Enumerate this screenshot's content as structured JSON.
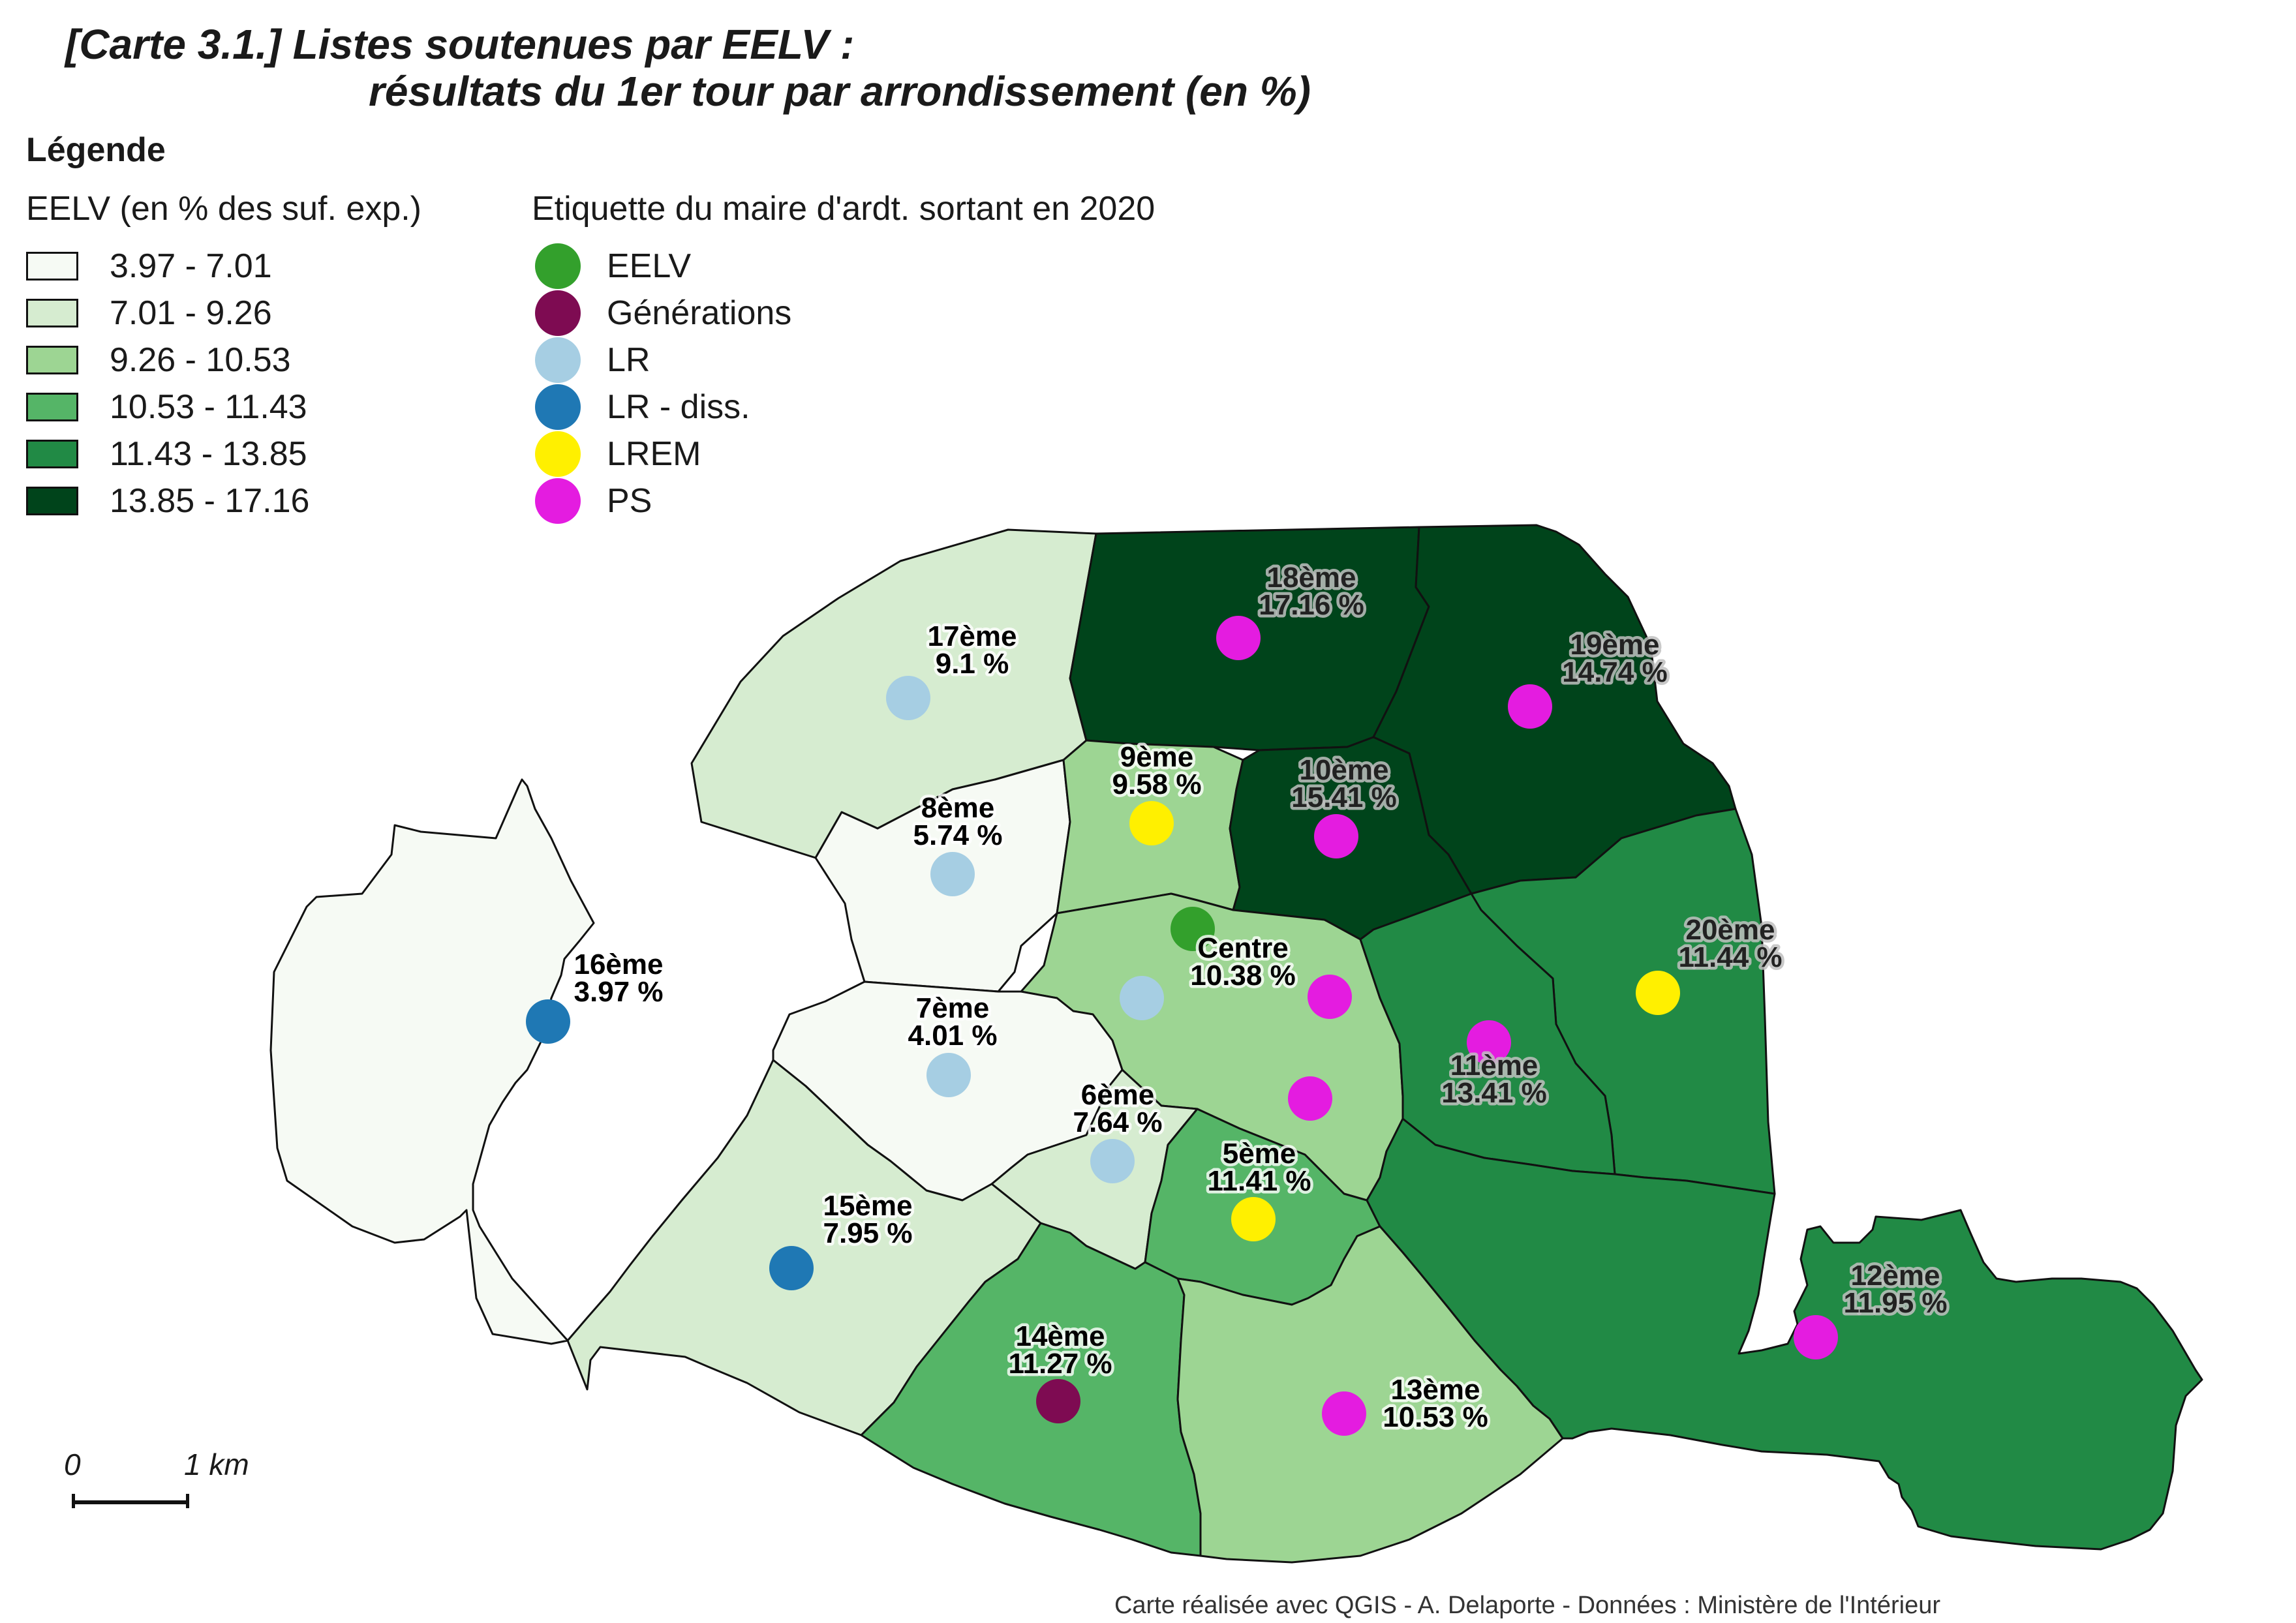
{
  "title": {
    "line1": "[Carte 3.1.] Listes soutenues par EELV :",
    "line2": "résultats du 1er tour par arrondissement (en %)"
  },
  "legend": {
    "title": "Légende",
    "classes_heading": "EELV (en % des suf. exp.)",
    "classes": [
      {
        "label": "3.97 - 7.01",
        "color": "#f6faf4"
      },
      {
        "label": "7.01 - 9.26",
        "color": "#d6ecd0"
      },
      {
        "label": "9.26 - 10.53",
        "color": "#9dd593"
      },
      {
        "label": "10.53 - 11.43",
        "color": "#55b567"
      },
      {
        "label": "11.43 - 13.85",
        "color": "#218a45"
      },
      {
        "label": "13.85 - 17.16",
        "color": "#00441b"
      }
    ],
    "parties_heading": "Etiquette du maire d'ardt. sortant en 2020",
    "parties": [
      {
        "label": "EELV",
        "color": "#33a02c"
      },
      {
        "label": "Générations",
        "color": "#7e0b52"
      },
      {
        "label": "LR",
        "color": "#a6cee3"
      },
      {
        "label": "LR - diss.",
        "color": "#1f78b4"
      },
      {
        "label": "LREM",
        "color": "#fff000"
      },
      {
        "label": "PS",
        "color": "#e41ce0"
      }
    ]
  },
  "arrondissements": [
    {
      "id": "16",
      "name": "16ème",
      "pct": 3.97,
      "pct_label": "3.97 %",
      "class": 0,
      "mayor": "LR - diss."
    },
    {
      "id": "17",
      "name": "17ème",
      "pct": 9.1,
      "pct_label": "9.1 %",
      "class": 1,
      "mayor": "LR"
    },
    {
      "id": "18",
      "name": "18ème",
      "pct": 17.16,
      "pct_label": "17.16 %",
      "class": 5,
      "mayor": "PS"
    },
    {
      "id": "19",
      "name": "19ème",
      "pct": 14.74,
      "pct_label": "14.74 %",
      "class": 5,
      "mayor": "PS"
    },
    {
      "id": "9",
      "name": "9ème",
      "pct": 9.58,
      "pct_label": "9.58 %",
      "class": 2,
      "mayor": "LREM"
    },
    {
      "id": "10",
      "name": "10ème",
      "pct": 15.41,
      "pct_label": "15.41 %",
      "class": 5,
      "mayor": "PS"
    },
    {
      "id": "8",
      "name": "8ème",
      "pct": 5.74,
      "pct_label": "5.74 %",
      "class": 0,
      "mayor": "LR"
    },
    {
      "id": "centre",
      "name": "Centre",
      "pct": 10.38,
      "pct_label": "10.38 %",
      "class": 2,
      "mayor": [
        "EELV",
        "LR",
        "PS",
        "PS"
      ]
    },
    {
      "id": "20",
      "name": "20ème",
      "pct": 11.44,
      "pct_label": "11.44 %",
      "class": 4,
      "mayor": "LREM"
    },
    {
      "id": "7",
      "name": "7ème",
      "pct": 4.01,
      "pct_label": "4.01 %",
      "class": 0,
      "mayor": "LR"
    },
    {
      "id": "11",
      "name": "11ème",
      "pct": 13.41,
      "pct_label": "13.41 %",
      "class": 4,
      "mayor": "PS"
    },
    {
      "id": "6",
      "name": "6ème",
      "pct": 7.64,
      "pct_label": "7.64 %",
      "class": 1,
      "mayor": "LR"
    },
    {
      "id": "5",
      "name": "5ème",
      "pct": 11.41,
      "pct_label": "11.41 %",
      "class": 3,
      "mayor": "LREM"
    },
    {
      "id": "15",
      "name": "15ème",
      "pct": 7.95,
      "pct_label": "7.95 %",
      "class": 1,
      "mayor": "LR - diss."
    },
    {
      "id": "12",
      "name": "12ème",
      "pct": 11.95,
      "pct_label": "11.95 %",
      "class": 4,
      "mayor": "PS"
    },
    {
      "id": "14",
      "name": "14ème",
      "pct": 11.27,
      "pct_label": "11.27 %",
      "class": 3,
      "mayor": "Générations"
    },
    {
      "id": "13",
      "name": "13ème",
      "pct": 10.53,
      "pct_label": "10.53 %",
      "class": 2,
      "mayor": "PS"
    }
  ],
  "scale": {
    "start_label": "0",
    "end_label": "1 km"
  },
  "credit": "Carte réalisée avec QGIS - A. Delaporte - Données : Ministère de l'Intérieur"
}
